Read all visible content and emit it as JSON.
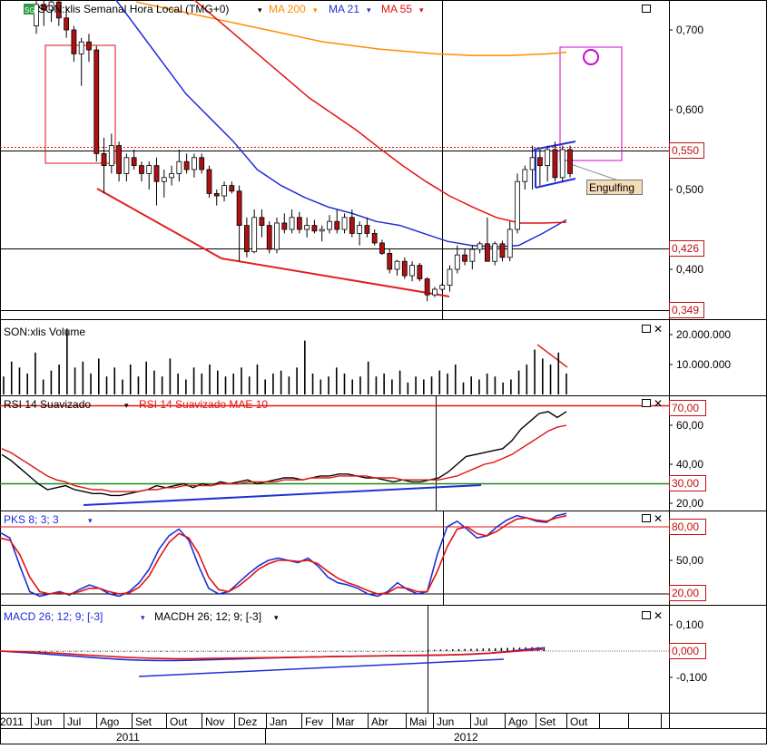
{
  "colors": {
    "ma200": "#ff8c00",
    "ma21": "#1f2fd6",
    "ma55": "#e31212",
    "candle_up": "#ffffff",
    "candle_down": "#b01010",
    "trendline_red": "#e02020",
    "trendline_blue": "#1f2fd6",
    "magenta": "#d400d4",
    "rsi_level_high": "#e31212",
    "rsi_level_low": "#1a8a1a",
    "axis_tag_border": "#c01010"
  },
  "window_icons": [
    "maximize-icon",
    "close-icon"
  ],
  "main_panel": {
    "badge": "SG",
    "title": "SON:xlis Semanal Hora Local (TMG+0)",
    "legend": [
      {
        "label": "MA 200",
        "color": "#ff8c00"
      },
      {
        "label": "MA 21",
        "color": "#1f2fd6"
      },
      {
        "label": "MA 55",
        "color": "#e31212"
      }
    ],
    "axis_ticks": [
      "0,700",
      "0,600",
      "0,500",
      "0,400"
    ],
    "axis_tags": [
      "0,550",
      "0,426",
      "0,349"
    ],
    "annotation": "Engulfing"
  },
  "volume_panel": {
    "title": "SON:xlis Volume",
    "axis_ticks": [
      "20.000.000",
      "10.000.000"
    ]
  },
  "rsi_panel": {
    "title": "RSI 14 Suavizado",
    "title2": "RSI 14 Suavizado MAE 10",
    "axis_ticks": [
      "60,00",
      "40,00",
      "20,00"
    ],
    "axis_tags": [
      "70,00",
      "30,00"
    ]
  },
  "pks_panel": {
    "title": "PKS 8; 3; 3",
    "axis_ticks": [
      "50,00"
    ],
    "axis_tags": [
      "80,00",
      "20,00"
    ]
  },
  "macd_panel": {
    "title": "MACD 26; 12; 9; [-3]",
    "title2": "MACDH 26; 12; 9; [-3]",
    "axis_ticks": [
      "0,100",
      "-0,100"
    ],
    "axis_tags": [
      "0,000"
    ]
  },
  "time_axis": {
    "months": [
      "2011",
      "Jun",
      "Jul",
      "Ago",
      "Set",
      "Out",
      "Nov",
      "Dez",
      "Jan",
      "Fev",
      "Mar",
      "Abr",
      "Mai",
      "Jun",
      "Jul",
      "Ago",
      "Set",
      "Out"
    ],
    "years": [
      "2011",
      "2012"
    ]
  },
  "chart_data": [
    {
      "type": "candlestick",
      "title": "SON:xlis Semanal Hora Local (TMG+0)",
      "ylim": [
        0.33,
        0.74
      ],
      "candles": [
        {
          "o": 0.705,
          "h": 0.745,
          "l": 0.695,
          "c": 0.732
        },
        {
          "o": 0.732,
          "h": 0.74,
          "l": 0.705,
          "c": 0.725
        },
        {
          "o": 0.725,
          "h": 0.745,
          "l": 0.71,
          "c": 0.735
        },
        {
          "o": 0.735,
          "h": 0.74,
          "l": 0.705,
          "c": 0.715
        },
        {
          "o": 0.715,
          "h": 0.73,
          "l": 0.69,
          "c": 0.7
        },
        {
          "o": 0.7,
          "h": 0.705,
          "l": 0.66,
          "c": 0.67
        },
        {
          "o": 0.67,
          "h": 0.69,
          "l": 0.63,
          "c": 0.685
        },
        {
          "o": 0.685,
          "h": 0.695,
          "l": 0.66,
          "c": 0.675
        },
        {
          "o": 0.675,
          "h": 0.68,
          "l": 0.535,
          "c": 0.545
        },
        {
          "o": 0.545,
          "h": 0.565,
          "l": 0.495,
          "c": 0.53
        },
        {
          "o": 0.53,
          "h": 0.57,
          "l": 0.52,
          "c": 0.555
        },
        {
          "o": 0.555,
          "h": 0.56,
          "l": 0.51,
          "c": 0.52
        },
        {
          "o": 0.52,
          "h": 0.545,
          "l": 0.51,
          "c": 0.54
        },
        {
          "o": 0.54,
          "h": 0.55,
          "l": 0.525,
          "c": 0.53
        },
        {
          "o": 0.53,
          "h": 0.535,
          "l": 0.51,
          "c": 0.52
        },
        {
          "o": 0.52,
          "h": 0.535,
          "l": 0.5,
          "c": 0.53
        },
        {
          "o": 0.53,
          "h": 0.54,
          "l": 0.48,
          "c": 0.51
        },
        {
          "o": 0.51,
          "h": 0.525,
          "l": 0.49,
          "c": 0.515
        },
        {
          "o": 0.515,
          "h": 0.53,
          "l": 0.505,
          "c": 0.52
        },
        {
          "o": 0.52,
          "h": 0.55,
          "l": 0.51,
          "c": 0.535
        },
        {
          "o": 0.535,
          "h": 0.545,
          "l": 0.52,
          "c": 0.525
        },
        {
          "o": 0.525,
          "h": 0.545,
          "l": 0.515,
          "c": 0.54
        },
        {
          "o": 0.54,
          "h": 0.545,
          "l": 0.52,
          "c": 0.525
        },
        {
          "o": 0.525,
          "h": 0.53,
          "l": 0.49,
          "c": 0.495
        },
        {
          "o": 0.495,
          "h": 0.5,
          "l": 0.48,
          "c": 0.492
        },
        {
          "o": 0.492,
          "h": 0.51,
          "l": 0.485,
          "c": 0.505
        },
        {
          "o": 0.505,
          "h": 0.51,
          "l": 0.495,
          "c": 0.498
        },
        {
          "o": 0.498,
          "h": 0.505,
          "l": 0.41,
          "c": 0.455
        },
        {
          "o": 0.455,
          "h": 0.465,
          "l": 0.415,
          "c": 0.422
        },
        {
          "o": 0.422,
          "h": 0.475,
          "l": 0.42,
          "c": 0.465
        },
        {
          "o": 0.465,
          "h": 0.475,
          "l": 0.44,
          "c": 0.455
        },
        {
          "o": 0.455,
          "h": 0.46,
          "l": 0.42,
          "c": 0.425
        },
        {
          "o": 0.425,
          "h": 0.465,
          "l": 0.42,
          "c": 0.458
        },
        {
          "o": 0.458,
          "h": 0.47,
          "l": 0.445,
          "c": 0.45
        },
        {
          "o": 0.45,
          "h": 0.475,
          "l": 0.445,
          "c": 0.465
        },
        {
          "o": 0.465,
          "h": 0.472,
          "l": 0.445,
          "c": 0.45
        },
        {
          "o": 0.45,
          "h": 0.465,
          "l": 0.44,
          "c": 0.455
        },
        {
          "o": 0.455,
          "h": 0.462,
          "l": 0.445,
          "c": 0.448
        },
        {
          "o": 0.448,
          "h": 0.455,
          "l": 0.435,
          "c": 0.45
        },
        {
          "o": 0.45,
          "h": 0.468,
          "l": 0.445,
          "c": 0.46
        },
        {
          "o": 0.46,
          "h": 0.475,
          "l": 0.445,
          "c": 0.45
        },
        {
          "o": 0.45,
          "h": 0.47,
          "l": 0.445,
          "c": 0.465
        },
        {
          "o": 0.465,
          "h": 0.475,
          "l": 0.44,
          "c": 0.445
        },
        {
          "o": 0.445,
          "h": 0.46,
          "l": 0.43,
          "c": 0.455
        },
        {
          "o": 0.455,
          "h": 0.465,
          "l": 0.44,
          "c": 0.445
        },
        {
          "o": 0.445,
          "h": 0.45,
          "l": 0.43,
          "c": 0.433
        },
        {
          "o": 0.433,
          "h": 0.437,
          "l": 0.418,
          "c": 0.42
        },
        {
          "o": 0.42,
          "h": 0.425,
          "l": 0.395,
          "c": 0.4
        },
        {
          "o": 0.4,
          "h": 0.412,
          "l": 0.392,
          "c": 0.41
        },
        {
          "o": 0.41,
          "h": 0.415,
          "l": 0.388,
          "c": 0.392
        },
        {
          "o": 0.392,
          "h": 0.41,
          "l": 0.385,
          "c": 0.405
        },
        {
          "o": 0.405,
          "h": 0.408,
          "l": 0.385,
          "c": 0.388
        },
        {
          "o": 0.388,
          "h": 0.39,
          "l": 0.36,
          "c": 0.368
        },
        {
          "o": 0.368,
          "h": 0.378,
          "l": 0.365,
          "c": 0.375
        },
        {
          "o": 0.375,
          "h": 0.383,
          "l": 0.372,
          "c": 0.38
        },
        {
          "o": 0.38,
          "h": 0.405,
          "l": 0.372,
          "c": 0.4
        },
        {
          "o": 0.4,
          "h": 0.43,
          "l": 0.395,
          "c": 0.418
        },
        {
          "o": 0.418,
          "h": 0.425,
          "l": 0.405,
          "c": 0.41
        },
        {
          "o": 0.41,
          "h": 0.43,
          "l": 0.4,
          "c": 0.425
        },
        {
          "o": 0.425,
          "h": 0.435,
          "l": 0.42,
          "c": 0.432
        },
        {
          "o": 0.432,
          "h": 0.465,
          "l": 0.41,
          "c": 0.41
        },
        {
          "o": 0.41,
          "h": 0.435,
          "l": 0.405,
          "c": 0.432
        },
        {
          "o": 0.432,
          "h": 0.436,
          "l": 0.41,
          "c": 0.415
        },
        {
          "o": 0.415,
          "h": 0.46,
          "l": 0.41,
          "c": 0.45
        },
        {
          "o": 0.45,
          "h": 0.52,
          "l": 0.445,
          "c": 0.51
        },
        {
          "o": 0.51,
          "h": 0.53,
          "l": 0.5,
          "c": 0.525
        },
        {
          "o": 0.525,
          "h": 0.555,
          "l": 0.5,
          "c": 0.54
        },
        {
          "o": 0.54,
          "h": 0.55,
          "l": 0.505,
          "c": 0.53
        },
        {
          "o": 0.53,
          "h": 0.555,
          "l": 0.51,
          "c": 0.55
        },
        {
          "o": 0.55,
          "h": 0.56,
          "l": 0.51,
          "c": 0.515
        },
        {
          "o": 0.515,
          "h": 0.555,
          "l": 0.51,
          "c": 0.55
        },
        {
          "o": 0.55,
          "h": 0.555,
          "l": 0.515,
          "c": 0.52
        }
      ],
      "ma200": [
        0.735,
        0.73,
        0.725,
        0.72,
        0.715,
        0.71,
        0.705,
        0.7,
        0.695,
        0.69,
        0.685,
        0.682,
        0.679,
        0.676,
        0.674,
        0.672,
        0.67,
        0.669,
        0.668,
        0.668,
        0.668,
        0.669,
        0.67,
        0.672
      ],
      "ma21": [
        0.78,
        0.74,
        0.7,
        0.66,
        0.62,
        0.59,
        0.56,
        0.525,
        0.505,
        0.49,
        0.478,
        0.47,
        0.46,
        0.455,
        0.445,
        0.435,
        0.43,
        0.428,
        0.43,
        0.445,
        0.462
      ],
      "ma55": [
        0.79,
        0.765,
        0.74,
        0.715,
        0.69,
        0.665,
        0.64,
        0.615,
        0.595,
        0.575,
        0.552,
        0.53,
        0.51,
        0.492,
        0.478,
        0.465,
        0.458,
        0.458,
        0.459
      ],
      "ma200_x": [
        0,
        1
      ],
      "horizontal_lines": [
        0.55,
        0.426,
        0.349
      ],
      "annotations": [
        "Engulfing"
      ]
    },
    {
      "type": "bar",
      "title": "SON:xlis Volume",
      "ylim": [
        0,
        24000000
      ],
      "values": [
        6,
        11,
        9,
        7,
        14,
        5,
        8,
        10,
        22,
        9,
        11,
        7,
        12,
        6,
        9,
        5,
        10,
        6,
        11,
        8,
        6,
        12,
        7,
        5,
        9,
        7,
        10,
        8,
        6,
        7,
        9,
        6,
        10,
        5,
        7,
        8,
        6,
        9,
        18,
        7,
        5,
        6,
        9,
        7,
        5,
        6,
        11,
        6,
        7,
        5,
        8,
        4,
        6,
        5,
        6,
        8,
        7,
        10,
        4,
        6,
        5,
        7,
        6,
        4,
        5,
        8,
        10,
        15,
        12,
        10,
        14,
        7
      ]
    },
    {
      "type": "line",
      "title": "RSI 14 Suavizado",
      "ylim": [
        15,
        78
      ],
      "series": [
        {
          "name": "RSI 14 Suavizado",
          "values": [
            45,
            42,
            38,
            34,
            30,
            27,
            28,
            29,
            27,
            26,
            25,
            25,
            24,
            24,
            25,
            26,
            27,
            29,
            28,
            29,
            30,
            28,
            30,
            29,
            31,
            30,
            31,
            32,
            30,
            31,
            32,
            33,
            33,
            32,
            33,
            34,
            34,
            35,
            35,
            34,
            33,
            33,
            32,
            31,
            32,
            31,
            31,
            32,
            33,
            36,
            40,
            44,
            45,
            46,
            47,
            48,
            52,
            58,
            62,
            66,
            67,
            64,
            67
          ]
        },
        {
          "name": "RSI 14 Suavizado MAE 10",
          "values": [
            48,
            46,
            43,
            40,
            37,
            34,
            32,
            31,
            29,
            28,
            27,
            27,
            26,
            26,
            26,
            26,
            27,
            27,
            28,
            28,
            29,
            29,
            29,
            29,
            30,
            30,
            30,
            31,
            31,
            31,
            31,
            32,
            32,
            32,
            33,
            33,
            33,
            34,
            34,
            34,
            34,
            33,
            33,
            33,
            32,
            32,
            32,
            32,
            32,
            33,
            34,
            36,
            38,
            40,
            41,
            43,
            45,
            48,
            51,
            54,
            57,
            59,
            60
          ]
        }
      ],
      "levels": [
        70,
        30
      ]
    },
    {
      "type": "line",
      "title": "PKS 8; 3; 3",
      "ylim": [
        10,
        100
      ],
      "series": [
        {
          "name": "PKS 8; 3; 3",
          "values": [
            75,
            70,
            45,
            22,
            18,
            20,
            22,
            19,
            24,
            28,
            25,
            20,
            18,
            22,
            30,
            42,
            60,
            72,
            78,
            68,
            45,
            25,
            20,
            22,
            30,
            38,
            45,
            50,
            52,
            50,
            48,
            52,
            45,
            35,
            30,
            28,
            25,
            20,
            18,
            22,
            30,
            24,
            20,
            22,
            55,
            80,
            85,
            78,
            70,
            72,
            80,
            86,
            90,
            88,
            85,
            84,
            90,
            92
          ]
        },
        {
          "name": "",
          "values": [
            70,
            68,
            55,
            35,
            22,
            20,
            21,
            20,
            22,
            25,
            25,
            22,
            20,
            21,
            26,
            36,
            52,
            66,
            74,
            70,
            56,
            35,
            24,
            22,
            27,
            34,
            42,
            47,
            50,
            50,
            49,
            50,
            47,
            40,
            34,
            30,
            27,
            23,
            20,
            21,
            26,
            25,
            22,
            22,
            40,
            62,
            78,
            80,
            74,
            72,
            76,
            82,
            87,
            88,
            86,
            85,
            88,
            90
          ]
        }
      ],
      "levels": [
        80,
        20
      ]
    },
    {
      "type": "line",
      "title": "MACD 26; 12; 9; [-3]",
      "ylim": [
        -0.22,
        0.15
      ],
      "series": [
        {
          "name": "MACD 26; 12; 9; [-3]",
          "values": [
            0,
            -0.004,
            -0.008,
            -0.013,
            -0.018,
            -0.023,
            -0.028,
            -0.032,
            -0.035,
            -0.036,
            -0.036,
            -0.035,
            -0.033,
            -0.031,
            -0.029,
            -0.027,
            -0.025,
            -0.024,
            -0.022,
            -0.021,
            -0.02,
            -0.019,
            -0.018,
            -0.017,
            -0.017,
            -0.016,
            -0.014,
            -0.012,
            -0.008,
            -0.002,
            0.006,
            0.012
          ]
        },
        {
          "name": "MACDH 26; 12; 9; [-3]",
          "values": [
            0,
            -0.002,
            -0.004,
            -0.007,
            -0.011,
            -0.015,
            -0.019,
            -0.023,
            -0.026,
            -0.028,
            -0.029,
            -0.029,
            -0.028,
            -0.027,
            -0.026,
            -0.025,
            -0.024,
            -0.023,
            -0.022,
            -0.021,
            -0.02,
            -0.019,
            -0.018,
            -0.017,
            -0.016,
            -0.015,
            -0.014,
            -0.011,
            -0.008,
            -0.003,
            0.002,
            0.007
          ]
        }
      ],
      "levels": [
        0
      ]
    }
  ]
}
